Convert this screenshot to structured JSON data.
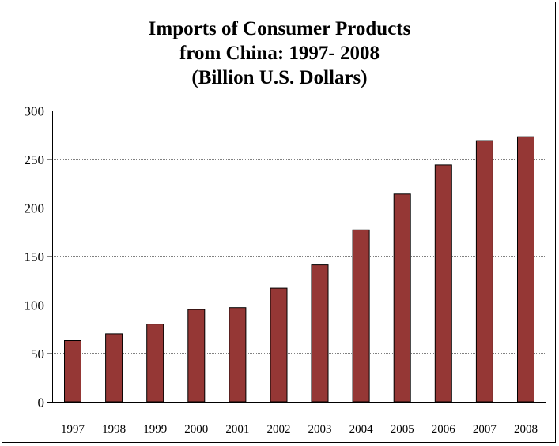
{
  "colors": {
    "bar_fill": "#953735",
    "bar_stroke": "#000000",
    "grid": "#000000",
    "background": "#ffffff"
  },
  "chart_data": {
    "type": "bar",
    "title_lines": [
      "Imports of Consumer Products",
      "from China: 1997- 2008",
      "(Billion U.S. Dollars)"
    ],
    "xlabel": "",
    "ylabel": "",
    "categories": [
      "1997",
      "1998",
      "1999",
      "2000",
      "2001",
      "2002",
      "2003",
      "2004",
      "2005",
      "2006",
      "2007",
      "2008"
    ],
    "values": [
      63,
      70,
      80,
      95,
      97,
      117,
      141,
      177,
      214,
      244,
      269,
      273
    ],
    "ylim": [
      0,
      300
    ],
    "yticks": [
      0,
      50,
      100,
      150,
      200,
      250,
      300
    ],
    "grid": true,
    "legend": "none"
  }
}
